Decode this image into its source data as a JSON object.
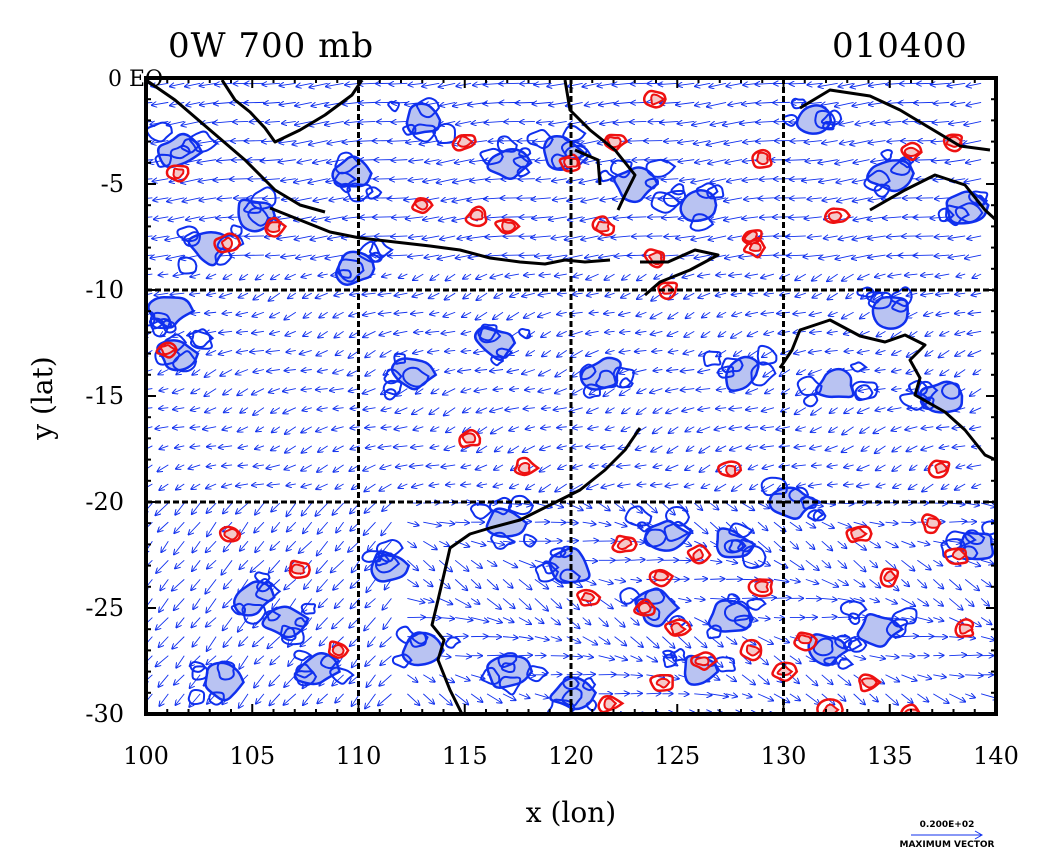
{
  "title_left": "0W 700 mb",
  "title_right": "010400",
  "corner_label": "0 EQ",
  "x_axis": {
    "label": "x (lon)",
    "ticks": [
      "100",
      "105",
      "110",
      "115",
      "120",
      "125",
      "130",
      "135",
      "140"
    ],
    "range": [
      100,
      140
    ]
  },
  "y_axis": {
    "label": "y (lat)",
    "ticks": [
      "-5",
      "-10",
      "-15",
      "-20",
      "-25",
      "-30"
    ],
    "range": [
      -30,
      0
    ]
  },
  "grid_lon": [
    110,
    120,
    130
  ],
  "grid_lat": [
    -10,
    -20
  ],
  "max_vector": {
    "value": "0.200E+02",
    "label": "MAXIMUM VECTOR"
  },
  "colors": {
    "negative_contour": "#1030ee",
    "negative_fill": "#b9c3f2",
    "positive_contour": "#ee1111",
    "positive_fill": "#f4c9c9",
    "coast": "#000000",
    "vector": "#1030ee"
  },
  "map_data": {
    "type": "contour+vector",
    "variable": "700 mb",
    "lon_range": [
      100,
      140
    ],
    "lat_range": [
      -30,
      0
    ],
    "positive_cells": [
      [
        103.8,
        -7.8
      ],
      [
        106,
        -7
      ],
      [
        113,
        -6
      ],
      [
        115.6,
        -6.5
      ],
      [
        117,
        -7
      ],
      [
        120,
        -4
      ],
      [
        121.5,
        -7
      ],
      [
        122,
        -3
      ],
      [
        124,
        -8.5
      ],
      [
        124.5,
        -10
      ],
      [
        124,
        -1
      ],
      [
        128.5,
        -7.5
      ],
      [
        128.7,
        -8
      ],
      [
        129,
        -3.8
      ],
      [
        132.5,
        -6.5
      ],
      [
        136,
        -3.5
      ],
      [
        138,
        -3
      ],
      [
        115.2,
        -17
      ],
      [
        117.8,
        -18.4
      ],
      [
        104,
        -21.5
      ],
      [
        107.2,
        -23.2
      ],
      [
        120.8,
        -24.5
      ],
      [
        122.5,
        -22
      ],
      [
        124.2,
        -23.5
      ],
      [
        126,
        -22.5
      ],
      [
        127.5,
        -18.5
      ],
      [
        129,
        -24
      ],
      [
        125,
        -26
      ],
      [
        124.3,
        -28.5
      ],
      [
        126.2,
        -27.5
      ],
      [
        128.5,
        -27
      ],
      [
        131,
        -26.5
      ],
      [
        133.5,
        -21.5
      ],
      [
        135,
        -23.5
      ],
      [
        137,
        -21
      ],
      [
        138.2,
        -22.5
      ],
      [
        138.5,
        -26
      ],
      [
        130,
        -28
      ],
      [
        134,
        -28.5
      ],
      [
        136,
        -30
      ],
      [
        121.8,
        -29.5
      ],
      [
        123.5,
        -25
      ],
      [
        132.2,
        -29.8
      ],
      [
        137.4,
        -18.4
      ],
      [
        101,
        -12.8
      ],
      [
        101.5,
        -4.5
      ],
      [
        109,
        -27
      ],
      [
        115,
        -3
      ]
    ],
    "negative_cells": [
      [
        101.5,
        -3.5
      ],
      [
        105,
        -6.5
      ],
      [
        103,
        -8
      ],
      [
        101,
        -11
      ],
      [
        101.5,
        -13
      ],
      [
        109.5,
        -4.5
      ],
      [
        113,
        -2
      ],
      [
        117,
        -4
      ],
      [
        119.5,
        -3.5
      ],
      [
        123,
        -5
      ],
      [
        126,
        -6
      ],
      [
        131.5,
        -2
      ],
      [
        135,
        -4.5
      ],
      [
        138.5,
        -6
      ],
      [
        112.5,
        -14
      ],
      [
        116.5,
        -12.5
      ],
      [
        121.5,
        -14
      ],
      [
        117,
        -21
      ],
      [
        120,
        -23
      ],
      [
        124.5,
        -21.5
      ],
      [
        127.5,
        -22
      ],
      [
        130.5,
        -20
      ],
      [
        124,
        -25
      ],
      [
        127.5,
        -25.5
      ],
      [
        126,
        -28
      ],
      [
        132,
        -27
      ],
      [
        134.5,
        -26
      ],
      [
        137.5,
        -15
      ],
      [
        139,
        -22
      ],
      [
        106.5,
        -25.5
      ],
      [
        105,
        -24.5
      ],
      [
        111.5,
        -23
      ],
      [
        113,
        -27
      ],
      [
        117,
        -28
      ],
      [
        103.5,
        -28.5
      ],
      [
        120,
        -29
      ],
      [
        108,
        -28
      ],
      [
        132.5,
        -14.5
      ],
      [
        135,
        -11
      ],
      [
        110,
        -9
      ],
      [
        128,
        -14
      ]
    ]
  }
}
